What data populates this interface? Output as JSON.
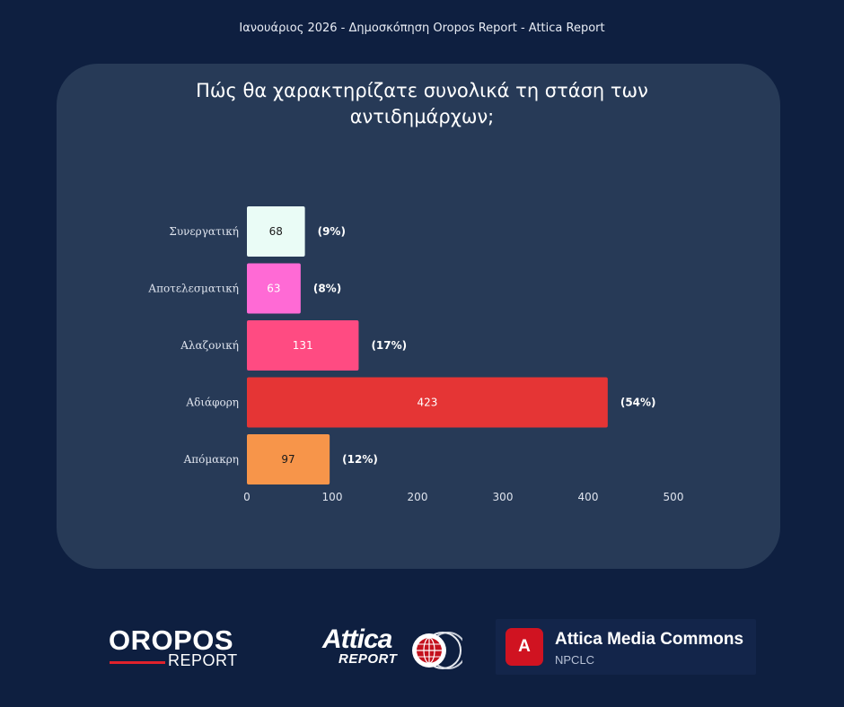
{
  "header": {
    "subtitle": "Ιανουάριος 2026 - Δημοσκόπηση Oropos Report - Attica Report"
  },
  "chart_data": {
    "type": "bar",
    "orientation": "horizontal",
    "title": "Πώς θα χαρακτηρίζατε συνολικά τη στάση των αντιδημάρχων;",
    "title_lines": [
      "Πώς θα χαρακτηρίζατε συνολικά τη στάση των",
      "αντιδημάρχων;"
    ],
    "categories": [
      "Συνεργατική",
      "Αποτελεσματική",
      "Αλαζονική",
      "Αδιάφορη",
      "Απόμακρη"
    ],
    "values": [
      68,
      63,
      131,
      423,
      97
    ],
    "percent_labels": [
      "(9%)",
      "(8%)",
      "(17%)",
      "(54%)",
      "(12%)"
    ],
    "colors": [
      "#eafcf6",
      "#ff6ad5",
      "#ff4b82",
      "#e53535",
      "#f7954a"
    ],
    "value_label_colors": [
      "#1a1a1a",
      "#ffffff",
      "#ffffff",
      "#ffffff",
      "#1a1a1a"
    ],
    "xlim": [
      0,
      500
    ],
    "xticks": [
      0,
      100,
      200,
      300,
      400,
      500
    ],
    "grid": false,
    "xlabel": "",
    "ylabel": ""
  },
  "footer": {
    "oropos_word": "OROPOS",
    "oropos_sub": "REPORT",
    "attica_word": "Attica",
    "attica_sub": "REPORT",
    "amc_badge": "A",
    "amc_title": "Attica Media Commons",
    "amc_sub": "NPCLC"
  }
}
